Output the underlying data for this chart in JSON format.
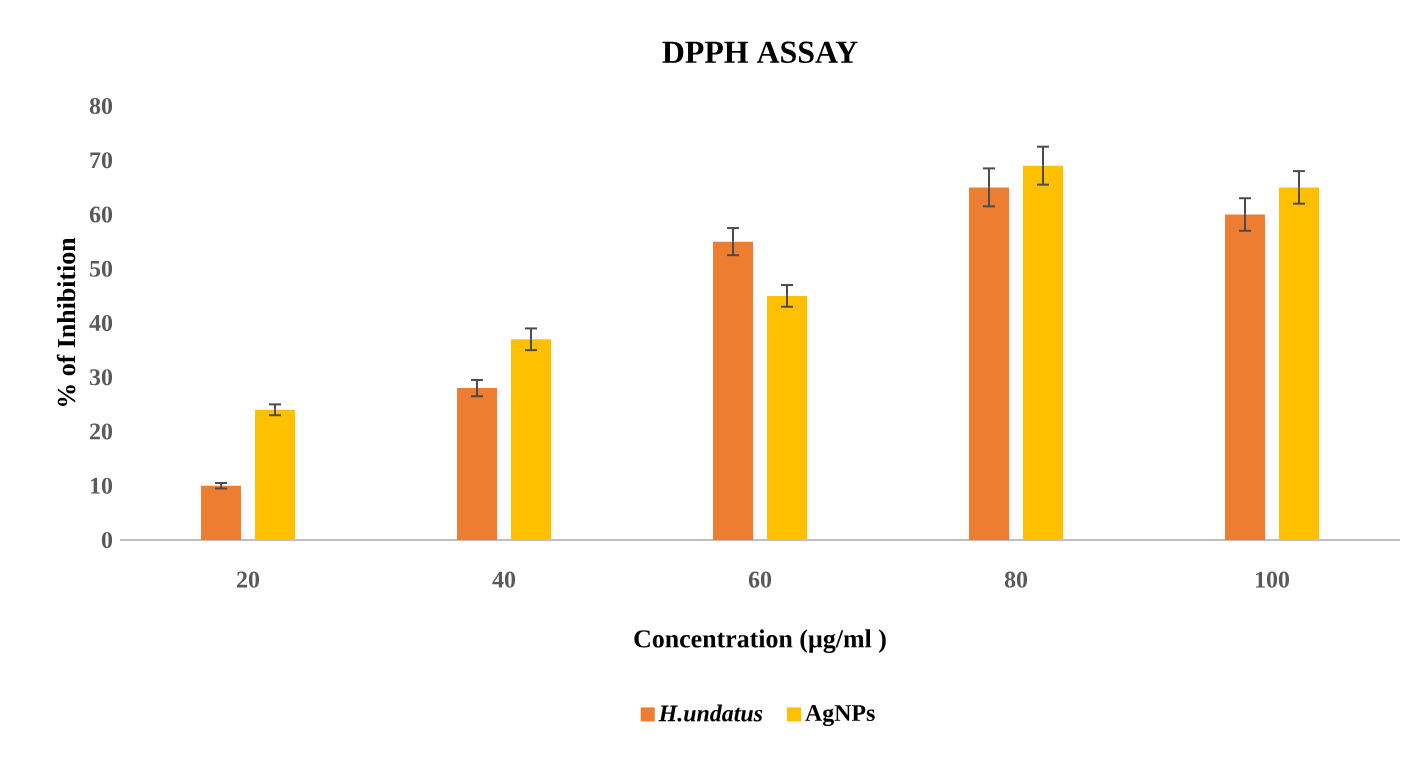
{
  "chart_data": {
    "type": "bar",
    "title": "DPPH ASSAY",
    "xlabel": "Concentration (µg/ml )",
    "ylabel": "% of Inhibition",
    "categories": [
      "20",
      "40",
      "60",
      "80",
      "100"
    ],
    "series": [
      {
        "name": "H.undatus",
        "color": "#ed7d31",
        "values": [
          10,
          28,
          55,
          65,
          60
        ],
        "errors": [
          0.5,
          1.5,
          2.5,
          3.5,
          3
        ]
      },
      {
        "name": "AgNPs",
        "color": "#ffc000",
        "values": [
          24,
          37,
          45,
          69,
          65
        ],
        "errors": [
          1,
          2,
          2,
          3.5,
          3
        ]
      }
    ],
    "ylim": [
      0,
      80
    ],
    "yticks": [
      0,
      10,
      20,
      30,
      40,
      50,
      60,
      70,
      80
    ],
    "grid": false,
    "legend": "bottom"
  }
}
